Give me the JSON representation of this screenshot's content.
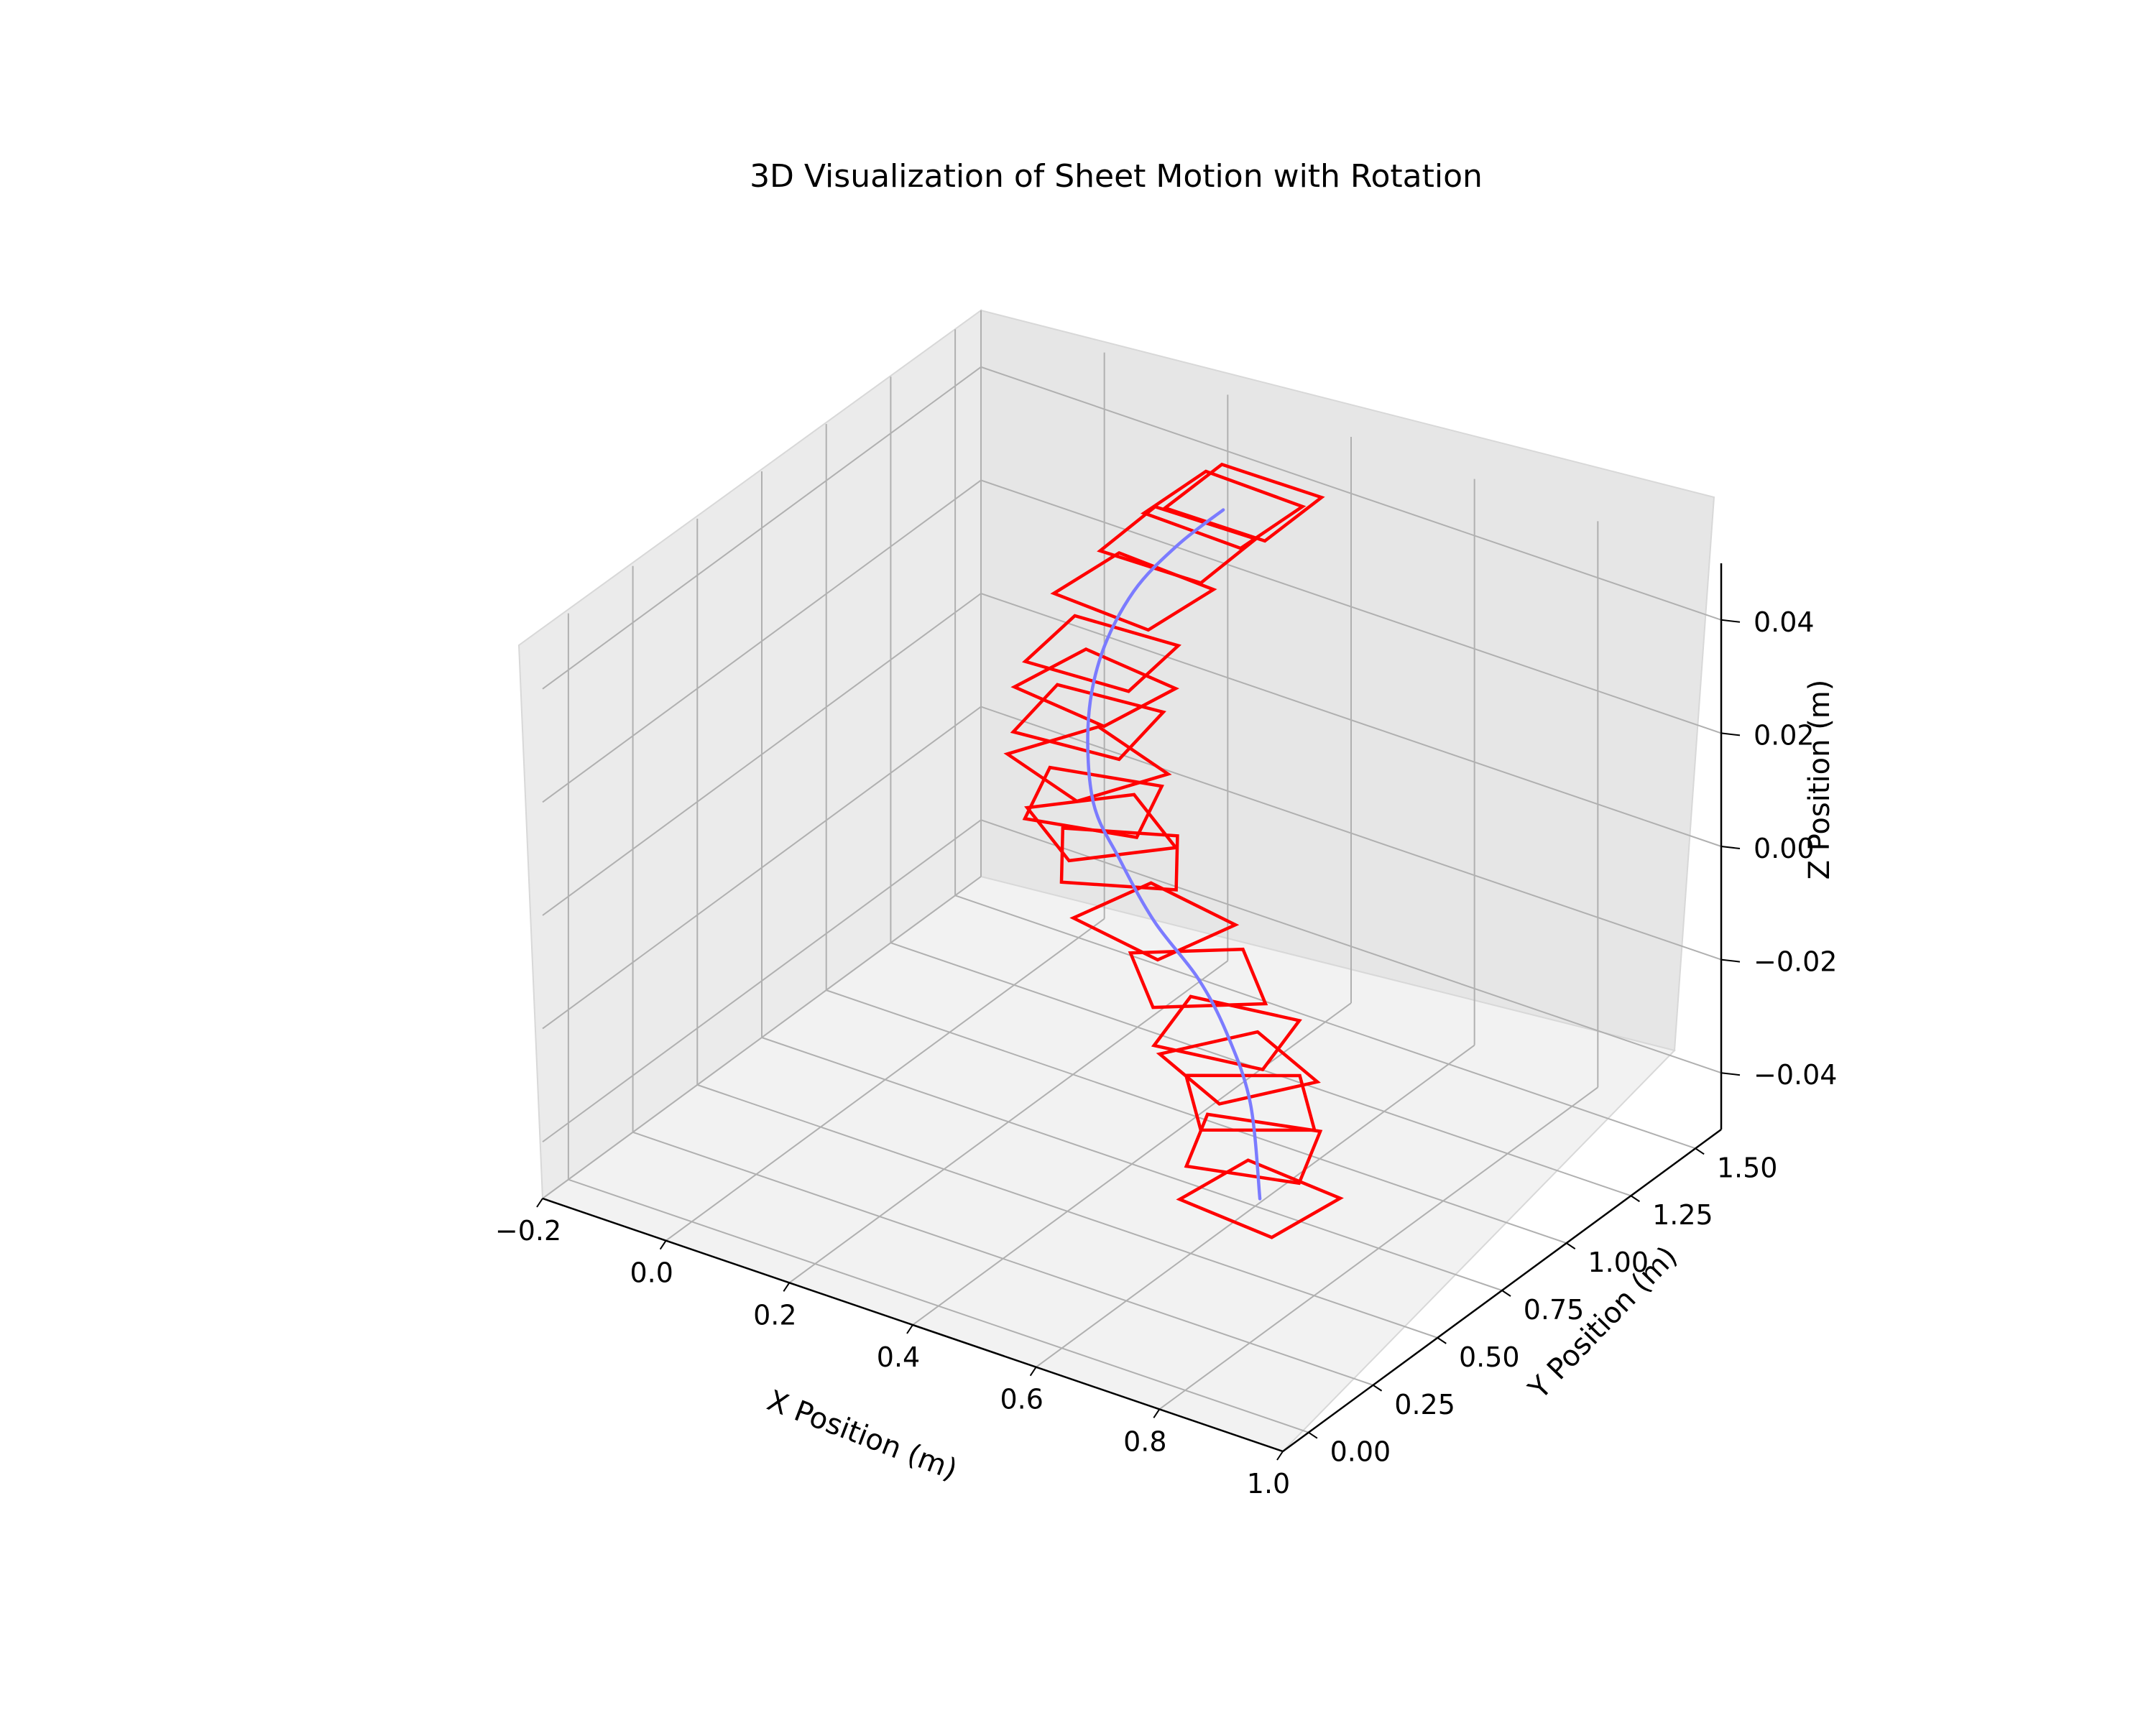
{
  "chart_data": {
    "type": "3d-line",
    "title": "3D Visualization of Sheet Motion with Rotation",
    "xlabel": "X Position (m)",
    "ylabel": "Y Position (m)",
    "zlabel": "Z Position (m)",
    "x_ticks": [
      "−0.2",
      "0.0",
      "0.2",
      "0.4",
      "0.6",
      "0.8",
      "1.0"
    ],
    "y_ticks": [
      "0.00",
      "0.25",
      "0.50",
      "0.75",
      "1.00",
      "1.25",
      "1.50"
    ],
    "z_ticks": [
      "−0.04",
      "−0.02",
      "0.00",
      "0.02",
      "0.04"
    ],
    "xlim": [
      -0.2,
      1.0
    ],
    "ylim": [
      -0.1,
      1.6
    ],
    "zlim": [
      -0.05,
      0.05
    ],
    "grid": true,
    "series": [
      {
        "kind": "trajectory",
        "color": "#7b7bff",
        "points": [
          [
            0.85,
            0.17,
            -0.02
          ],
          [
            0.78,
            0.3,
            -0.01
          ],
          [
            0.7,
            0.4,
            -0.004
          ],
          [
            0.62,
            0.48,
            0.0
          ],
          [
            0.52,
            0.55,
            0.004
          ],
          [
            0.43,
            0.63,
            0.009
          ],
          [
            0.35,
            0.72,
            0.013
          ],
          [
            0.3,
            0.82,
            0.022
          ],
          [
            0.28,
            0.92,
            0.03
          ],
          [
            0.29,
            1.02,
            0.038
          ],
          [
            0.32,
            1.12,
            0.044
          ],
          [
            0.36,
            1.2,
            0.049
          ]
        ]
      },
      {
        "kind": "sheet-outlines",
        "color": "#ff0000",
        "size": 0.16,
        "sheets": [
          {
            "center": [
              0.85,
              0.17,
              -0.02
            ],
            "angle": -6
          },
          {
            "center": [
              0.81,
              0.24,
              -0.015
            ],
            "angle": 20
          },
          {
            "center": [
              0.78,
              0.3,
              -0.01
            ],
            "angle": 38
          },
          {
            "center": [
              0.74,
              0.35,
              -0.007
            ],
            "angle": -28
          },
          {
            "center": [
              0.7,
              0.4,
              -0.004
            ],
            "angle": 12
          },
          {
            "center": [
              0.62,
              0.48,
              0.0
            ],
            "angle": 42
          },
          {
            "center": [
              0.52,
              0.55,
              0.004
            ],
            "angle": -12
          },
          {
            "center": [
              0.43,
              0.63,
              0.009
            ],
            "angle": 30
          },
          {
            "center": [
              0.38,
              0.68,
              0.011
            ],
            "angle": -38
          },
          {
            "center": [
              0.35,
              0.72,
              0.013
            ],
            "angle": 18
          },
          {
            "center": [
              0.32,
              0.77,
              0.017
            ],
            "angle": -22
          },
          {
            "center": [
              0.3,
              0.82,
              0.022
            ],
            "angle": 8
          },
          {
            "center": [
              0.29,
              0.87,
              0.026
            ],
            "angle": -8
          },
          {
            "center": [
              0.28,
              0.92,
              0.03
            ],
            "angle": 5
          },
          {
            "center": [
              0.29,
              1.02,
              0.038
            ],
            "angle": -4
          },
          {
            "center": [
              0.32,
              1.12,
              0.044
            ],
            "angle": 2
          },
          {
            "center": [
              0.36,
              1.2,
              0.049
            ],
            "angle": -2
          },
          {
            "center": [
              0.38,
              1.23,
              0.05
            ],
            "angle": 1
          }
        ]
      }
    ]
  }
}
